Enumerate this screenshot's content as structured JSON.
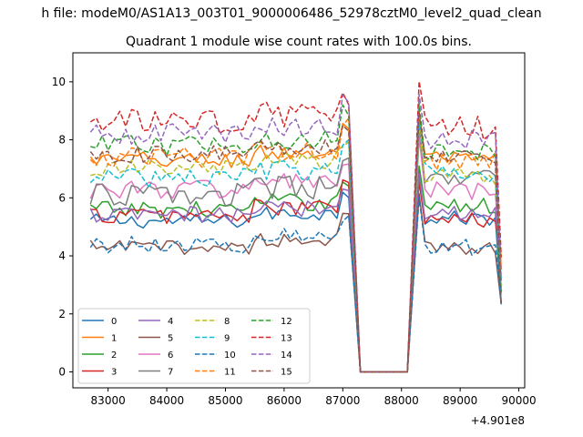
{
  "figure": {
    "suptitle": "h file: modeM0/AS1A13_003T01_9000006486_52978cztM0_level2_quad_clean",
    "title": "Quadrant 1 module wise count rates with 100.0s bins."
  },
  "chart_data": {
    "type": "line",
    "title": "Quadrant 1 module wise count rates with 100.0s bins.",
    "xlabel": "",
    "ylabel": "",
    "x_offset_label": "+4.901e8",
    "xlim": [
      82400,
      90100
    ],
    "ylim": [
      -0.55,
      11.0
    ],
    "xticks": [
      83000,
      84000,
      85000,
      86000,
      87000,
      88000,
      89000,
      90000
    ],
    "yticks": [
      0,
      2,
      4,
      6,
      8,
      10
    ],
    "grid": false,
    "legend": {
      "placement": "lower-left",
      "ncol": 4
    },
    "segment_times": {
      "seg1_start": 82700,
      "seg1_end": 87100,
      "gap_start": 87300,
      "gap_end": 88100,
      "seg2_start": 88300,
      "seg2_end": 89700,
      "step": 100
    },
    "series": [
      {
        "name": "0",
        "color": "#1f77b4",
        "style": "solid",
        "level1": 5.2,
        "level2": 5.3,
        "amp": 0.25
      },
      {
        "name": "1",
        "color": "#ff7f0e",
        "style": "solid",
        "level1": 7.3,
        "level2": 7.3,
        "amp": 0.3
      },
      {
        "name": "2",
        "color": "#2ca02c",
        "style": "solid",
        "level1": 5.6,
        "level2": 5.7,
        "amp": 0.3
      },
      {
        "name": "3",
        "color": "#d62728",
        "style": "solid",
        "level1": 5.4,
        "level2": 5.2,
        "amp": 0.3
      },
      {
        "name": "4",
        "color": "#9467bd",
        "style": "solid",
        "level1": 5.4,
        "level2": 5.5,
        "amp": 0.3
      },
      {
        "name": "5",
        "color": "#8c564b",
        "style": "solid",
        "level1": 4.3,
        "level2": 4.3,
        "amp": 0.25
      },
      {
        "name": "6",
        "color": "#e377c2",
        "style": "solid",
        "level1": 6.3,
        "level2": 6.2,
        "amp": 0.35
      },
      {
        "name": "7",
        "color": "#7f7f7f",
        "style": "solid",
        "level1": 6.1,
        "level2": 6.6,
        "amp": 0.4
      },
      {
        "name": "8",
        "color": "#bcbd22",
        "style": "dashed",
        "level1": 7.0,
        "level2": 6.8,
        "amp": 0.35
      },
      {
        "name": "9",
        "color": "#17becf",
        "style": "dashed",
        "level1": 6.7,
        "level2": 6.9,
        "amp": 0.35
      },
      {
        "name": "10",
        "color": "#1f77b4",
        "style": "dashed",
        "level1": 4.4,
        "level2": 4.3,
        "amp": 0.3
      },
      {
        "name": "11",
        "color": "#ff7f0e",
        "style": "dashed",
        "level1": 7.4,
        "level2": 7.3,
        "amp": 0.35
      },
      {
        "name": "12",
        "color": "#2ca02c",
        "style": "dashed",
        "level1": 7.8,
        "level2": 7.6,
        "amp": 0.35
      },
      {
        "name": "13",
        "color": "#d62728",
        "style": "dashed",
        "level1": 8.6,
        "level2": 8.4,
        "amp": 0.45
      },
      {
        "name": "14",
        "color": "#9467bd",
        "style": "dashed",
        "level1": 8.2,
        "level2": 8.0,
        "amp": 0.35
      },
      {
        "name": "15",
        "color": "#8c564b",
        "style": "dashed",
        "level1": 7.5,
        "level2": 7.4,
        "amp": 0.3
      }
    ]
  }
}
